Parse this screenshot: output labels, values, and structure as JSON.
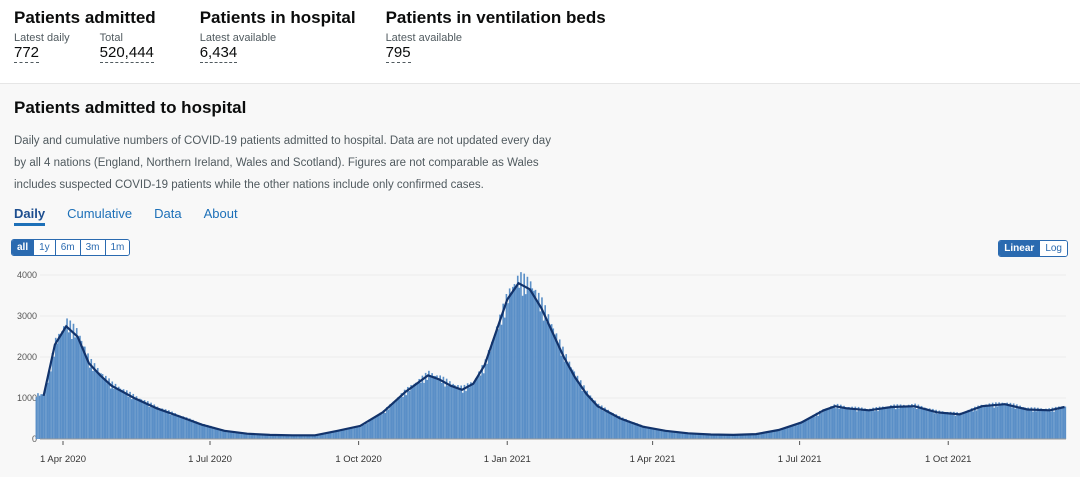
{
  "summary": [
    {
      "title": "Patients admitted",
      "metrics": [
        {
          "label": "Latest daily",
          "value": "772"
        },
        {
          "label": "Total",
          "value": "520,444"
        }
      ]
    },
    {
      "title": "Patients in hospital",
      "metrics": [
        {
          "label": "Latest available",
          "value": "6,434"
        }
      ]
    },
    {
      "title": "Patients in ventilation beds",
      "metrics": [
        {
          "label": "Latest available",
          "value": "795"
        }
      ]
    }
  ],
  "card": {
    "title": "Patients admitted to hospital",
    "description": "Daily and cumulative numbers of COVID-19 patients admitted to hospital. Data are not updated every day by all 4 nations (England, Northern Ireland, Wales and Scotland). Figures are not comparable as Wales includes suspected COVID-19 patients while the other nations include only confirmed cases.",
    "tabs": [
      "Daily",
      "Cumulative",
      "Data",
      "About"
    ],
    "range_buttons": [
      "all",
      "1y",
      "6m",
      "3m",
      "1m"
    ],
    "scale_buttons": [
      "Linear",
      "Log"
    ]
  },
  "chart_data": {
    "type": "bar",
    "bar_color": "#5a8fc7",
    "line_color": "#12336b",
    "ylim": [
      0,
      4000
    ],
    "yticks": [
      "0",
      "1000",
      "2000",
      "3000",
      "4000"
    ],
    "xticks": [
      {
        "date": "2020-04-01",
        "label": "1 Apr 2020"
      },
      {
        "date": "2020-07-01",
        "label": "1 Jul 2020"
      },
      {
        "date": "2020-10-01",
        "label": "1 Oct 2020"
      },
      {
        "date": "2021-01-01",
        "label": "1 Jan 2021"
      },
      {
        "date": "2021-04-01",
        "label": "1 Apr 2021"
      },
      {
        "date": "2021-07-01",
        "label": "1 Jul 2021"
      },
      {
        "date": "2021-10-01",
        "label": "1 Oct 2021"
      }
    ],
    "grid": true,
    "series": [
      {
        "points": [
          [
            "2020-03-20",
            1050
          ],
          [
            "2020-03-27",
            2300
          ],
          [
            "2020-04-03",
            2750
          ],
          [
            "2020-04-10",
            2500
          ],
          [
            "2020-04-17",
            1850
          ],
          [
            "2020-04-24",
            1550
          ],
          [
            "2020-05-01",
            1300
          ],
          [
            "2020-05-15",
            1000
          ],
          [
            "2020-05-29",
            750
          ],
          [
            "2020-06-12",
            550
          ],
          [
            "2020-06-26",
            350
          ],
          [
            "2020-07-10",
            200
          ],
          [
            "2020-07-24",
            130
          ],
          [
            "2020-08-07",
            100
          ],
          [
            "2020-08-21",
            90
          ],
          [
            "2020-09-04",
            90
          ],
          [
            "2020-09-18",
            200
          ],
          [
            "2020-10-02",
            320
          ],
          [
            "2020-10-16",
            650
          ],
          [
            "2020-10-30",
            1150
          ],
          [
            "2020-11-13",
            1550
          ],
          [
            "2020-11-20",
            1450
          ],
          [
            "2020-11-27",
            1300
          ],
          [
            "2020-12-04",
            1200
          ],
          [
            "2020-12-11",
            1350
          ],
          [
            "2020-12-18",
            1800
          ],
          [
            "2020-12-25",
            2600
          ],
          [
            "2021-01-01",
            3400
          ],
          [
            "2021-01-08",
            3800
          ],
          [
            "2021-01-15",
            3650
          ],
          [
            "2021-01-22",
            3200
          ],
          [
            "2021-01-29",
            2600
          ],
          [
            "2021-02-05",
            2000
          ],
          [
            "2021-02-12",
            1500
          ],
          [
            "2021-02-19",
            1100
          ],
          [
            "2021-02-26",
            800
          ],
          [
            "2021-03-12",
            500
          ],
          [
            "2021-03-26",
            300
          ],
          [
            "2021-04-09",
            200
          ],
          [
            "2021-04-23",
            140
          ],
          [
            "2021-05-07",
            110
          ],
          [
            "2021-05-21",
            100
          ],
          [
            "2021-06-04",
            120
          ],
          [
            "2021-06-18",
            220
          ],
          [
            "2021-07-02",
            400
          ],
          [
            "2021-07-16",
            700
          ],
          [
            "2021-07-23",
            800
          ],
          [
            "2021-07-30",
            750
          ],
          [
            "2021-08-13",
            700
          ],
          [
            "2021-08-27",
            780
          ],
          [
            "2021-09-10",
            800
          ],
          [
            "2021-09-24",
            650
          ],
          [
            "2021-10-08",
            600
          ],
          [
            "2021-10-22",
            800
          ],
          [
            "2021-11-05",
            850
          ],
          [
            "2021-11-19",
            720
          ],
          [
            "2021-12-03",
            700
          ],
          [
            "2021-12-12",
            780
          ]
        ]
      }
    ]
  }
}
